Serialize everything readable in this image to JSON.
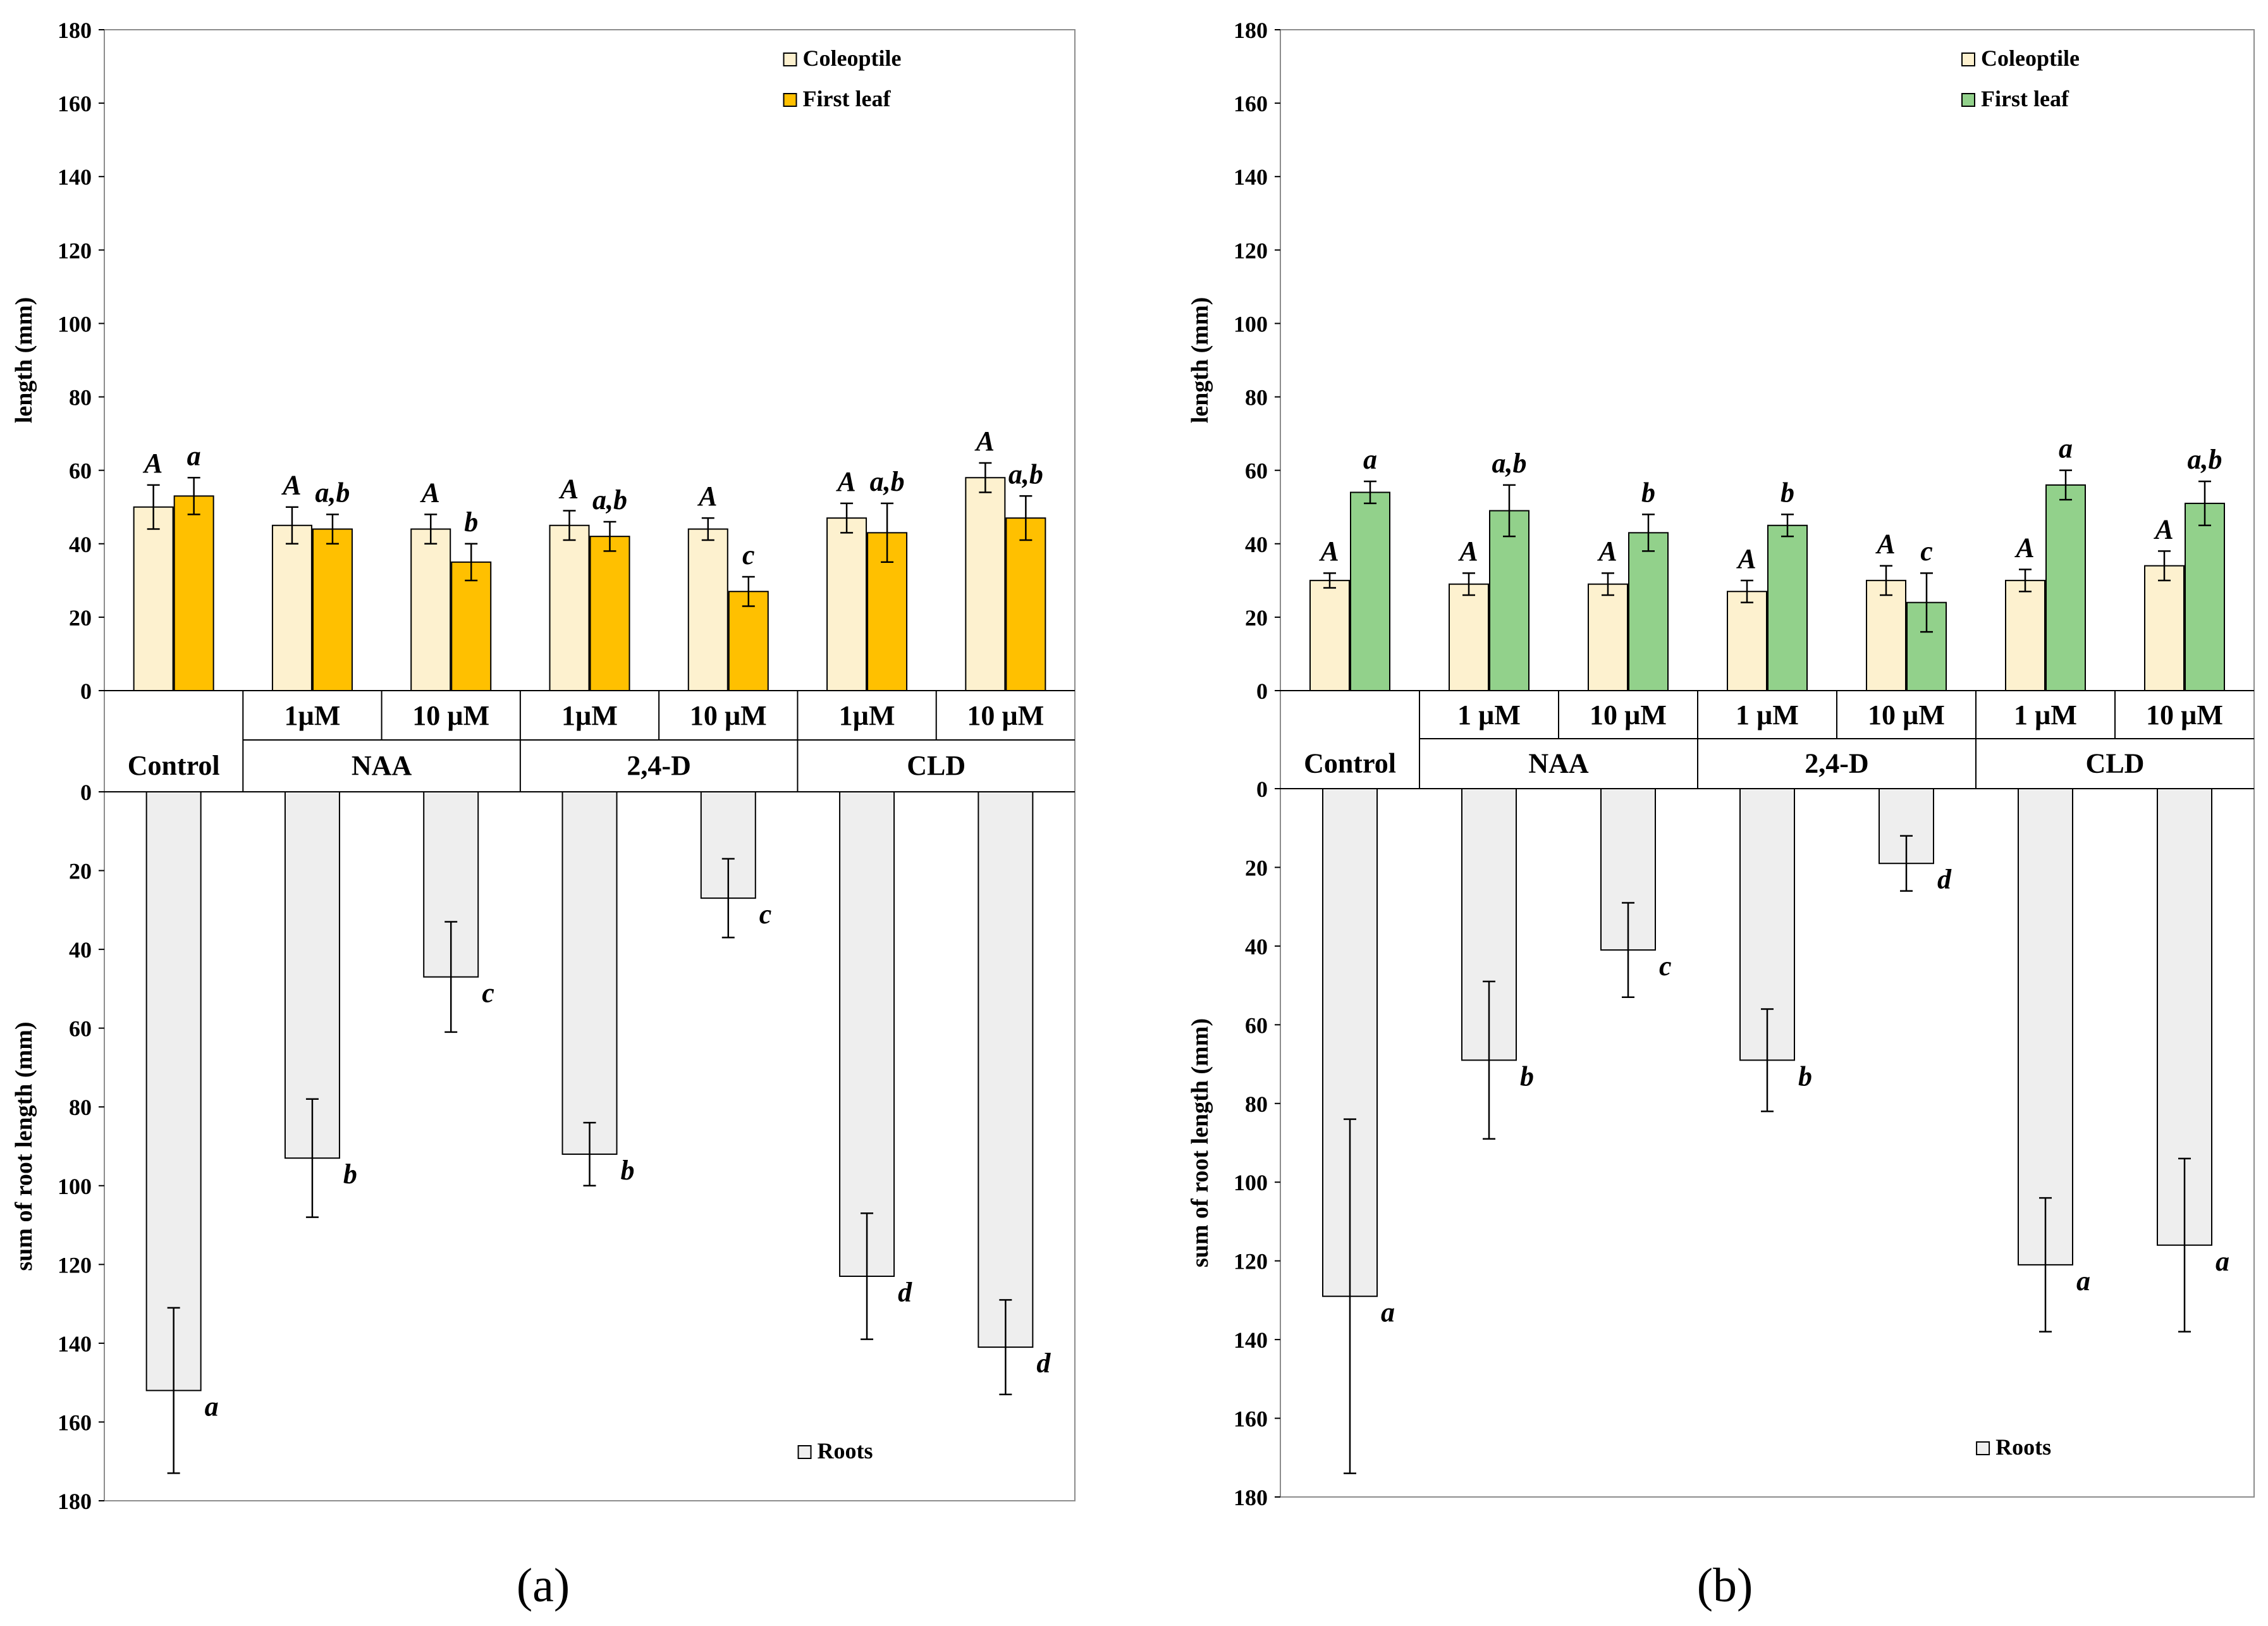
{
  "chart_data": [
    {
      "panel_label": "(a)",
      "type": "bar",
      "title": "",
      "groups": [
        {
          "name": "Control",
          "subs": [
            ""
          ]
        },
        {
          "name": "NAA",
          "subs": [
            "1µM",
            "10 µM"
          ]
        },
        {
          "name": "2,4-D",
          "subs": [
            "1µM",
            "10 µM"
          ]
        },
        {
          "name": "CLD",
          "subs": [
            "1µM",
            "10 µM"
          ]
        }
      ],
      "top": {
        "ylabel": "length (mm)",
        "ylim": [
          0,
          180
        ],
        "yticks": [
          "0",
          "20",
          "40",
          "60",
          "80",
          "100",
          "120",
          "140",
          "160",
          "180"
        ],
        "series": [
          {
            "name": "Coleoptile",
            "color": "#fdf1cf",
            "values": [
              50,
              45,
              44,
              45,
              44,
              47,
              58
            ],
            "errors": [
              6,
              5,
              4,
              4,
              3,
              4,
              4
            ],
            "letters": [
              "A",
              "A",
              "A",
              "A",
              "A",
              "A",
              "A"
            ]
          },
          {
            "name": "First leaf",
            "color": "#ffc000",
            "values": [
              53,
              44,
              35,
              42,
              27,
              43,
              47
            ],
            "errors": [
              5,
              4,
              5,
              4,
              4,
              8,
              6
            ],
            "letters": [
              "a",
              "a,b",
              "b",
              "a,b",
              "c",
              "a,b",
              "a,b"
            ]
          }
        ]
      },
      "bottom": {
        "ylabel": "sum of root length (mm)",
        "ylim": [
          0,
          180
        ],
        "yticks": [
          "0",
          "20",
          "40",
          "60",
          "80",
          "100",
          "120",
          "140",
          "160",
          "180"
        ],
        "series": [
          {
            "name": "Roots",
            "color": "#eeeeee",
            "values": [
              152,
              93,
              47,
              92,
              27,
              123,
              141
            ],
            "errors": [
              21,
              15,
              14,
              8,
              10,
              16,
              12
            ],
            "letters": [
              "a",
              "b",
              "c",
              "b",
              "c",
              "d",
              "d"
            ]
          }
        ]
      }
    },
    {
      "panel_label": "(b)",
      "type": "bar",
      "title": "",
      "groups": [
        {
          "name": "Control",
          "subs": [
            ""
          ]
        },
        {
          "name": "NAA",
          "subs": [
            "1 µM",
            "10 µM"
          ]
        },
        {
          "name": "2,4-D",
          "subs": [
            "1 µM",
            "10 µM"
          ]
        },
        {
          "name": "CLD",
          "subs": [
            "1 µM",
            "10 µM"
          ]
        }
      ],
      "top": {
        "ylabel": "length (mm)",
        "ylim": [
          0,
          180
        ],
        "yticks": [
          "0",
          "20",
          "40",
          "60",
          "80",
          "100",
          "120",
          "140",
          "160",
          "180"
        ],
        "series": [
          {
            "name": "Coleoptile",
            "color": "#fdf1cf",
            "values": [
              30,
              29,
              29,
              27,
              30,
              30,
              34
            ],
            "errors": [
              2,
              3,
              3,
              3,
              4,
              3,
              4
            ],
            "letters": [
              "A",
              "A",
              "A",
              "A",
              "A",
              "A",
              "A"
            ]
          },
          {
            "name": "First leaf",
            "color": "#92d18b",
            "values": [
              54,
              49,
              43,
              45,
              24,
              56,
              51
            ],
            "errors": [
              3,
              7,
              5,
              3,
              8,
              4,
              6
            ],
            "letters": [
              "a",
              "a,b",
              "b",
              "b",
              "c",
              "a",
              "a,b"
            ]
          }
        ]
      },
      "bottom": {
        "ylabel": "sum of root length (mm)",
        "ylim": [
          0,
          180
        ],
        "yticks": [
          "0",
          "20",
          "40",
          "60",
          "80",
          "100",
          "120",
          "140",
          "160",
          "180"
        ],
        "series": [
          {
            "name": "Roots",
            "color": "#eeeeee",
            "values": [
              129,
              69,
              41,
              69,
              19,
              121,
              116
            ],
            "errors": [
              45,
              20,
              12,
              13,
              7,
              17,
              22
            ],
            "letters": [
              "a",
              "b",
              "c",
              "b",
              "d",
              "a",
              "a"
            ]
          }
        ]
      }
    }
  ]
}
